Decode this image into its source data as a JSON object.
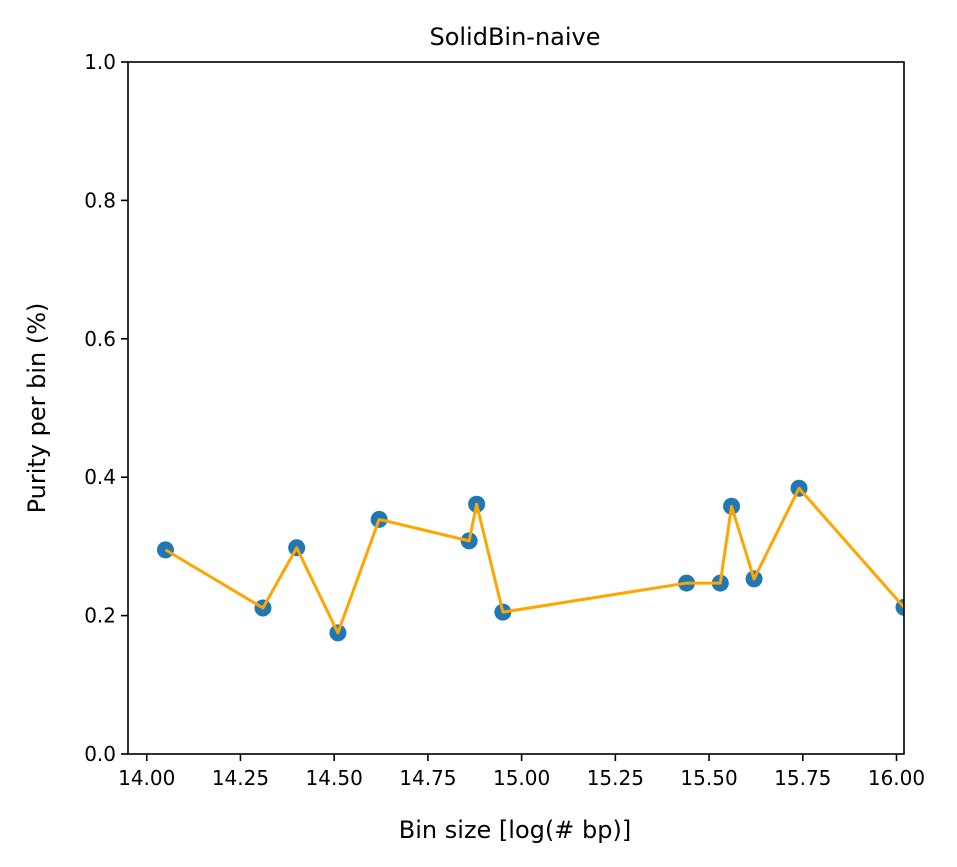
{
  "chart_data": {
    "type": "scatter",
    "title": "SolidBin-naive",
    "xlabel": "Bin size [log(# bp)]",
    "ylabel": "Purity per bin (%)",
    "xlim": [
      13.95,
      16.02
    ],
    "ylim": [
      0.0,
      1.0
    ],
    "xticks": [
      14.0,
      14.25,
      14.5,
      14.75,
      15.0,
      15.25,
      15.5,
      15.75,
      16.0
    ],
    "xtick_labels": [
      "14.00",
      "14.25",
      "14.50",
      "14.75",
      "15.00",
      "15.25",
      "15.50",
      "15.75",
      "16.00"
    ],
    "yticks": [
      0.0,
      0.2,
      0.4,
      0.6,
      0.8,
      1.0
    ],
    "ytick_labels": [
      "0.0",
      "0.2",
      "0.4",
      "0.6",
      "0.8",
      "1.0"
    ],
    "grid": false,
    "series": [
      {
        "kind": "scatter",
        "color": "#1f77b4",
        "x": [
          14.05,
          14.31,
          14.4,
          14.51,
          14.62,
          14.86,
          14.88,
          14.95,
          15.44,
          15.53,
          15.56,
          15.62,
          15.74,
          16.02
        ],
        "y": [
          0.295,
          0.211,
          0.298,
          0.175,
          0.339,
          0.308,
          0.361,
          0.205,
          0.247,
          0.247,
          0.358,
          0.253,
          0.384,
          0.212
        ]
      },
      {
        "kind": "line",
        "color": "#ffa500",
        "x": [
          14.05,
          14.31,
          14.4,
          14.51,
          14.62,
          14.86,
          14.88,
          14.95,
          15.44,
          15.53,
          15.56,
          15.62,
          15.74,
          16.02
        ],
        "y": [
          0.295,
          0.211,
          0.298,
          0.175,
          0.339,
          0.308,
          0.361,
          0.205,
          0.247,
          0.247,
          0.358,
          0.253,
          0.384,
          0.212
        ]
      }
    ]
  }
}
